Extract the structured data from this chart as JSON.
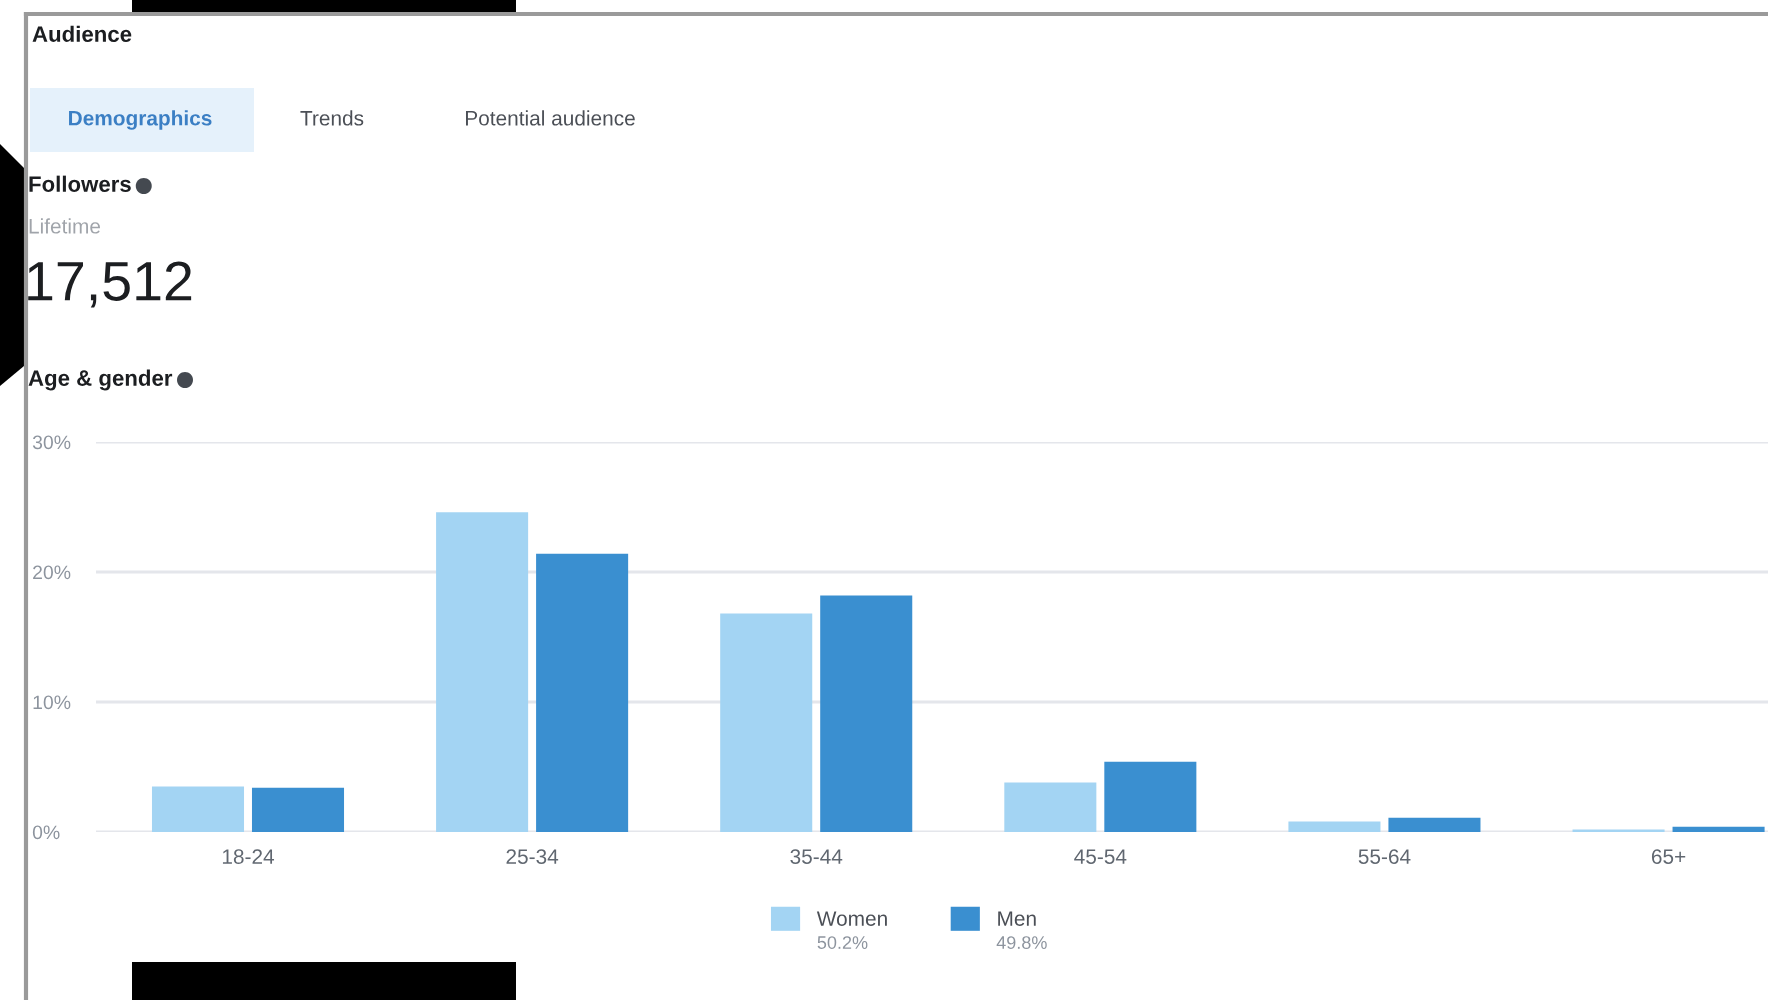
{
  "chart_data": {
    "type": "bar",
    "title": "Age & gender",
    "categories": [
      "18-24",
      "25-34",
      "35-44",
      "45-54",
      "55-64",
      "65+"
    ],
    "series": [
      {
        "name": "Women",
        "color": "#a3d4f3",
        "values": [
          3.5,
          24.6,
          16.8,
          3.8,
          0.8,
          0.2
        ]
      },
      {
        "name": "Men",
        "color": "#3a8fd0",
        "values": [
          3.4,
          21.4,
          18.2,
          5.4,
          1.1,
          0.4
        ]
      }
    ],
    "ylim": [
      0,
      30
    ],
    "yticks": [
      {
        "value": 0,
        "label": "0%"
      },
      {
        "value": 10,
        "label": "10%"
      },
      {
        "value": 20,
        "label": "20%"
      },
      {
        "value": 30,
        "label": "30%"
      }
    ],
    "grid": "y",
    "legend": "bottom",
    "annotations": [
      "Audience",
      "Demographics",
      "Trends",
      "Potential audience",
      "Followers",
      "Lifetime",
      "17,512",
      "50.2%",
      "49.8%"
    ]
  }
}
